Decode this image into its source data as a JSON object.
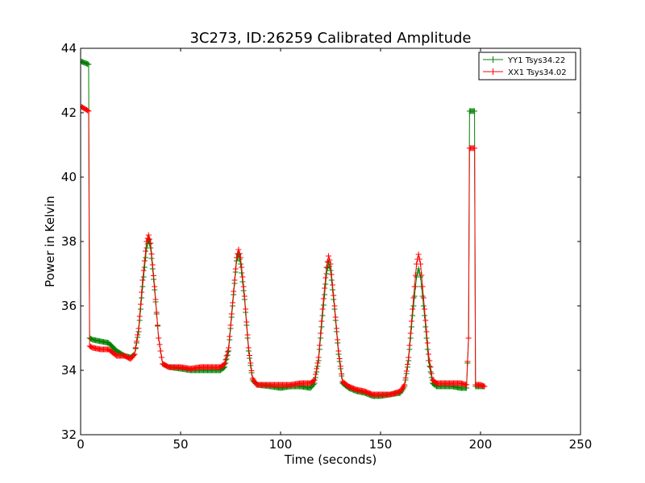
{
  "chart_data": {
    "type": "line",
    "title": "3C273, ID:26259 Calibrated Amplitude",
    "xlabel": "Time (seconds)",
    "ylabel": "Power in Kelvin",
    "xlim": [
      0,
      250
    ],
    "ylim": [
      32,
      44
    ],
    "xticks": [
      "0",
      "50",
      "100",
      "150",
      "200",
      "250"
    ],
    "yticks": [
      "32",
      "34",
      "36",
      "38",
      "40",
      "42",
      "44"
    ],
    "grid": false,
    "legend_position": "top-right",
    "marker": "+",
    "series": [
      {
        "name": "YY1 Tsys34.22",
        "color": "#008000",
        "points": [
          [
            0,
            43.6
          ],
          [
            4,
            43.5
          ],
          [
            4.5,
            35.0
          ],
          [
            6,
            34.95
          ],
          [
            10,
            34.9
          ],
          [
            14,
            34.85
          ],
          [
            18,
            34.6
          ],
          [
            22,
            34.45
          ],
          [
            25,
            34.4
          ],
          [
            27,
            34.5
          ],
          [
            29,
            35.2
          ],
          [
            31,
            36.6
          ],
          [
            33,
            37.8
          ],
          [
            34,
            38.05
          ],
          [
            35,
            37.8
          ],
          [
            37,
            36.5
          ],
          [
            39,
            35.0
          ],
          [
            41,
            34.2
          ],
          [
            44,
            34.1
          ],
          [
            50,
            34.05
          ],
          [
            55,
            34.0
          ],
          [
            60,
            34.0
          ],
          [
            65,
            34.0
          ],
          [
            70,
            34.0
          ],
          [
            72,
            34.1
          ],
          [
            74,
            34.6
          ],
          [
            76,
            36.0
          ],
          [
            78,
            37.4
          ],
          [
            79,
            37.6
          ],
          [
            80,
            37.3
          ],
          [
            82,
            36.2
          ],
          [
            84,
            34.6
          ],
          [
            86,
            33.7
          ],
          [
            88,
            33.55
          ],
          [
            95,
            33.5
          ],
          [
            100,
            33.45
          ],
          [
            105,
            33.5
          ],
          [
            110,
            33.5
          ],
          [
            115,
            33.45
          ],
          [
            117,
            33.6
          ],
          [
            119,
            34.3
          ],
          [
            121,
            35.7
          ],
          [
            123,
            37.0
          ],
          [
            124,
            37.35
          ],
          [
            125,
            37.1
          ],
          [
            127,
            35.9
          ],
          [
            129,
            34.5
          ],
          [
            131,
            33.6
          ],
          [
            134,
            33.45
          ],
          [
            138,
            33.35
          ],
          [
            142,
            33.3
          ],
          [
            146,
            33.2
          ],
          [
            150,
            33.2
          ],
          [
            155,
            33.25
          ],
          [
            160,
            33.3
          ],
          [
            162,
            33.5
          ],
          [
            164,
            34.3
          ],
          [
            166,
            35.7
          ],
          [
            168,
            36.9
          ],
          [
            169,
            37.15
          ],
          [
            170,
            36.9
          ],
          [
            172,
            35.7
          ],
          [
            174,
            34.3
          ],
          [
            176,
            33.6
          ],
          [
            178,
            33.5
          ],
          [
            182,
            33.5
          ],
          [
            186,
            33.5
          ],
          [
            190,
            33.45
          ],
          [
            193,
            33.45
          ],
          [
            194,
            35.0
          ],
          [
            194.5,
            42.05
          ],
          [
            197,
            42.05
          ],
          [
            197.5,
            33.5
          ],
          [
            200,
            33.5
          ],
          [
            202,
            33.5
          ]
        ]
      },
      {
        "name": "XX1 Tsys34.02",
        "color": "#ff0000",
        "points": [
          [
            0,
            42.2
          ],
          [
            4,
            42.05
          ],
          [
            4.5,
            34.75
          ],
          [
            6,
            34.7
          ],
          [
            10,
            34.65
          ],
          [
            14,
            34.65
          ],
          [
            18,
            34.45
          ],
          [
            22,
            34.45
          ],
          [
            25,
            34.35
          ],
          [
            27,
            34.5
          ],
          [
            29,
            35.3
          ],
          [
            31,
            36.8
          ],
          [
            33,
            38.0
          ],
          [
            34,
            38.2
          ],
          [
            35,
            37.95
          ],
          [
            37,
            36.6
          ],
          [
            39,
            35.0
          ],
          [
            41,
            34.2
          ],
          [
            44,
            34.1
          ],
          [
            50,
            34.1
          ],
          [
            55,
            34.05
          ],
          [
            60,
            34.1
          ],
          [
            65,
            34.1
          ],
          [
            70,
            34.1
          ],
          [
            72,
            34.2
          ],
          [
            74,
            34.7
          ],
          [
            76,
            36.1
          ],
          [
            78,
            37.5
          ],
          [
            79,
            37.75
          ],
          [
            80,
            37.5
          ],
          [
            82,
            36.3
          ],
          [
            84,
            34.7
          ],
          [
            86,
            33.75
          ],
          [
            88,
            33.55
          ],
          [
            95,
            33.55
          ],
          [
            100,
            33.55
          ],
          [
            105,
            33.55
          ],
          [
            110,
            33.6
          ],
          [
            115,
            33.6
          ],
          [
            117,
            33.7
          ],
          [
            119,
            34.4
          ],
          [
            121,
            35.9
          ],
          [
            123,
            37.2
          ],
          [
            124,
            37.55
          ],
          [
            125,
            37.3
          ],
          [
            127,
            36.0
          ],
          [
            129,
            34.6
          ],
          [
            131,
            33.65
          ],
          [
            134,
            33.5
          ],
          [
            138,
            33.4
          ],
          [
            142,
            33.35
          ],
          [
            146,
            33.25
          ],
          [
            150,
            33.25
          ],
          [
            155,
            33.25
          ],
          [
            160,
            33.35
          ],
          [
            162,
            33.55
          ],
          [
            164,
            34.4
          ],
          [
            166,
            35.9
          ],
          [
            168,
            37.3
          ],
          [
            169,
            37.6
          ],
          [
            170,
            37.3
          ],
          [
            172,
            35.9
          ],
          [
            174,
            34.5
          ],
          [
            176,
            33.7
          ],
          [
            178,
            33.6
          ],
          [
            182,
            33.6
          ],
          [
            186,
            33.6
          ],
          [
            190,
            33.6
          ],
          [
            193,
            33.55
          ],
          [
            194,
            35.0
          ],
          [
            194.5,
            40.9
          ],
          [
            197,
            40.9
          ],
          [
            197.5,
            33.55
          ],
          [
            200,
            33.55
          ],
          [
            202,
            33.5
          ]
        ]
      }
    ]
  }
}
